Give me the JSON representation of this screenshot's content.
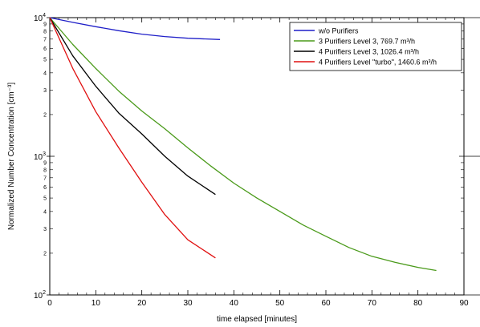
{
  "chart_data": {
    "type": "line",
    "xlabel": "time elapsed [minutes]",
    "ylabel": "Normalized Number Concentration [cm⁻³]",
    "xlim": [
      0,
      90
    ],
    "ylim": [
      100,
      10000
    ],
    "yscale": "log",
    "grid": false,
    "legend_position": "top-right",
    "x_ticks": [
      "0",
      "10",
      "20",
      "30",
      "40",
      "50",
      "60",
      "70",
      "80",
      "90"
    ],
    "y_major_ticks": [
      {
        "value": 100,
        "base": "10",
        "exp": "2"
      },
      {
        "value": 1000,
        "base": "10",
        "exp": "3"
      },
      {
        "value": 10000,
        "base": "10",
        "exp": "4"
      }
    ],
    "y_minor_labels": [
      "2",
      "3",
      "4",
      "5",
      "6",
      "7",
      "8",
      "9"
    ],
    "series": [
      {
        "name": "w/o Purifiers",
        "color": "#1f1fc8",
        "x": [
          0,
          5,
          10,
          15,
          20,
          25,
          30,
          37
        ],
        "y": [
          10000,
          9250,
          8600,
          8050,
          7600,
          7300,
          7100,
          6950
        ]
      },
      {
        "name": "3 Purifiers Level 3, 769.7 m³/h",
        "color": "#4a9a1a",
        "x": [
          0,
          5,
          10,
          15,
          20,
          25,
          30,
          35,
          40,
          45,
          50,
          55,
          60,
          65,
          70,
          75,
          80,
          84
        ],
        "y": [
          10000,
          6400,
          4300,
          2950,
          2120,
          1580,
          1150,
          850,
          640,
          500,
          400,
          320,
          265,
          220,
          190,
          172,
          158,
          150
        ]
      },
      {
        "name": "4 Purifiers Level 3, 1026.4 m³/h",
        "color": "#000000",
        "x": [
          0,
          5,
          10,
          15,
          20,
          25,
          30,
          36
        ],
        "y": [
          10000,
          5300,
          3200,
          2050,
          1450,
          1000,
          720,
          530
        ]
      },
      {
        "name": "4 Purifiers Level \"turbo\", 1460.6 m³/h",
        "color": "#e01010",
        "x": [
          0,
          5,
          10,
          15,
          20,
          25,
          30,
          36
        ],
        "y": [
          10000,
          4300,
          2100,
          1150,
          650,
          380,
          250,
          185
        ]
      }
    ]
  }
}
